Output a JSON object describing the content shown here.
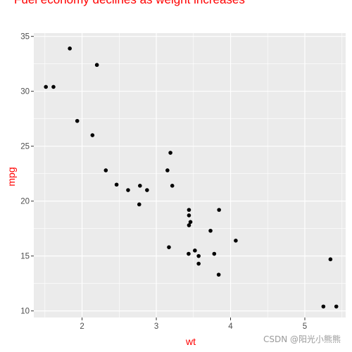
{
  "chart_data": {
    "type": "scatter",
    "title": "Fuel economy declines as weight increases",
    "xlabel": "wt",
    "ylabel": "mpg",
    "xlim": [
      1.35,
      5.55
    ],
    "ylim": [
      9.4,
      35.3
    ],
    "x_ticks": [
      2,
      3,
      4,
      5
    ],
    "y_ticks": [
      10,
      15,
      20,
      25,
      30,
      35
    ],
    "grid": true,
    "background": "#ebebeb",
    "gridline_color": "#ffffff",
    "point_color": "#000000",
    "title_color": "#ff0000",
    "label_color": "#ff0000",
    "points": [
      {
        "x": 1.513,
        "y": 30.4
      },
      {
        "x": 1.615,
        "y": 30.4
      },
      {
        "x": 1.835,
        "y": 33.9
      },
      {
        "x": 1.935,
        "y": 27.3
      },
      {
        "x": 2.14,
        "y": 26.0
      },
      {
        "x": 2.2,
        "y": 32.4
      },
      {
        "x": 2.32,
        "y": 22.8
      },
      {
        "x": 2.465,
        "y": 21.5
      },
      {
        "x": 2.62,
        "y": 21.0
      },
      {
        "x": 2.77,
        "y": 19.7
      },
      {
        "x": 2.78,
        "y": 21.4
      },
      {
        "x": 2.875,
        "y": 21.0
      },
      {
        "x": 3.15,
        "y": 22.8
      },
      {
        "x": 3.17,
        "y": 15.8
      },
      {
        "x": 3.19,
        "y": 24.4
      },
      {
        "x": 3.215,
        "y": 21.4
      },
      {
        "x": 3.435,
        "y": 15.2
      },
      {
        "x": 3.44,
        "y": 18.7
      },
      {
        "x": 3.44,
        "y": 19.2
      },
      {
        "x": 3.44,
        "y": 17.8
      },
      {
        "x": 3.46,
        "y": 18.1
      },
      {
        "x": 3.52,
        "y": 15.5
      },
      {
        "x": 3.57,
        "y": 15.0
      },
      {
        "x": 3.57,
        "y": 14.3
      },
      {
        "x": 3.73,
        "y": 17.3
      },
      {
        "x": 3.78,
        "y": 15.2
      },
      {
        "x": 3.84,
        "y": 13.3
      },
      {
        "x": 3.845,
        "y": 19.2
      },
      {
        "x": 4.07,
        "y": 16.4
      },
      {
        "x": 5.25,
        "y": 10.4
      },
      {
        "x": 5.345,
        "y": 14.7
      },
      {
        "x": 5.424,
        "y": 10.4
      }
    ]
  },
  "watermark": "CSDN @阳光小熊熊"
}
